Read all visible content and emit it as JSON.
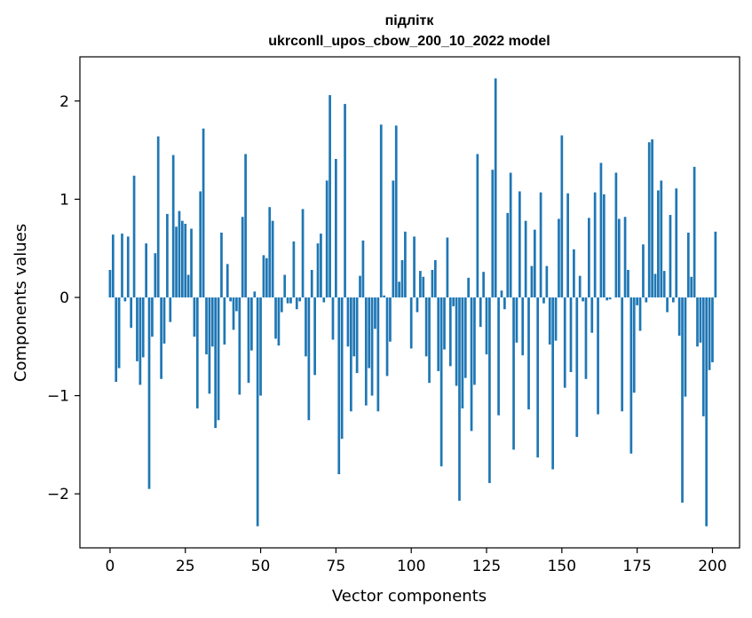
{
  "chart_data": {
    "type": "bar",
    "title_line1": "підлітк",
    "title_line2": "ukrconll_upos_cbow_200_10_2022 model",
    "xlabel": "Vector components",
    "ylabel": "Components values",
    "xlim": [
      -10,
      209
    ],
    "ylim": [
      -2.55,
      2.45
    ],
    "xticks": [
      0,
      25,
      50,
      75,
      100,
      125,
      150,
      175,
      200
    ],
    "yticks": [
      -2,
      -1,
      0,
      1,
      2
    ],
    "ytick_labels": [
      "−2",
      "−1",
      "0",
      "1",
      "2"
    ],
    "bar_color": "#1f77b4",
    "values": [
      0.28,
      0.64,
      -0.86,
      -0.72,
      0.65,
      -0.04,
      0.62,
      -0.31,
      1.24,
      -0.65,
      -0.89,
      -0.61,
      0.55,
      -1.95,
      -0.4,
      0.45,
      1.64,
      -0.83,
      -0.47,
      0.85,
      -0.25,
      1.45,
      0.72,
      0.88,
      0.78,
      0.75,
      0.23,
      0.7,
      -0.4,
      -1.13,
      1.08,
      1.72,
      -0.58,
      -0.98,
      -0.5,
      -1.33,
      -1.25,
      0.66,
      -0.48,
      0.34,
      -0.04,
      -0.33,
      -0.14,
      -0.99,
      0.82,
      1.46,
      -0.87,
      -0.54,
      0.06,
      -2.33,
      -1.0,
      0.43,
      0.4,
      0.92,
      0.78,
      -0.42,
      -0.49,
      -0.15,
      0.23,
      -0.06,
      -0.06,
      0.57,
      -0.12,
      -0.04,
      0.9,
      -0.6,
      -1.25,
      0.28,
      -0.79,
      0.55,
      0.65,
      -0.05,
      1.19,
      2.06,
      -0.43,
      1.41,
      -1.8,
      -1.44,
      1.97,
      -0.5,
      -1.16,
      -0.6,
      -0.77,
      0.22,
      0.58,
      -1.1,
      -0.72,
      -1.0,
      -0.32,
      -1.16,
      1.76,
      0.02,
      -0.8,
      -0.45,
      1.19,
      1.75,
      0.16,
      0.38,
      0.67,
      0.0,
      -0.52,
      0.62,
      -0.15,
      0.27,
      0.21,
      -0.6,
      -0.87,
      0.28,
      0.38,
      -0.75,
      -1.72,
      -0.53,
      0.61,
      -0.7,
      -0.09,
      -0.9,
      -2.07,
      -1.13,
      -0.82,
      0.2,
      -1.36,
      -0.89,
      1.46,
      -0.3,
      0.26,
      -0.58,
      -1.89,
      1.3,
      2.23,
      -1.2,
      0.07,
      -0.12,
      0.86,
      1.27,
      -1.55,
      -0.46,
      1.08,
      -0.59,
      0.78,
      -1.14,
      0.32,
      0.69,
      -1.63,
      1.07,
      -0.06,
      0.32,
      -0.48,
      -1.75,
      -0.44,
      0.8,
      1.65,
      -0.92,
      1.06,
      -0.76,
      0.49,
      -1.42,
      0.22,
      -0.04,
      -0.83,
      0.81,
      -0.36,
      1.07,
      -1.19,
      1.37,
      1.05,
      -0.03,
      -0.02,
      0.0,
      1.27,
      0.8,
      -1.16,
      0.82,
      0.28,
      -1.59,
      -0.97,
      -0.08,
      -0.34,
      0.54,
      -0.05,
      1.58,
      1.61,
      0.24,
      1.09,
      1.19,
      0.27,
      -0.15,
      0.84,
      -0.05,
      1.11,
      -0.39,
      -2.09,
      -1.01,
      0.66,
      0.21,
      1.33,
      -0.5,
      -0.46,
      -1.21,
      -2.33,
      -0.74,
      -0.66,
      0.67
    ]
  }
}
